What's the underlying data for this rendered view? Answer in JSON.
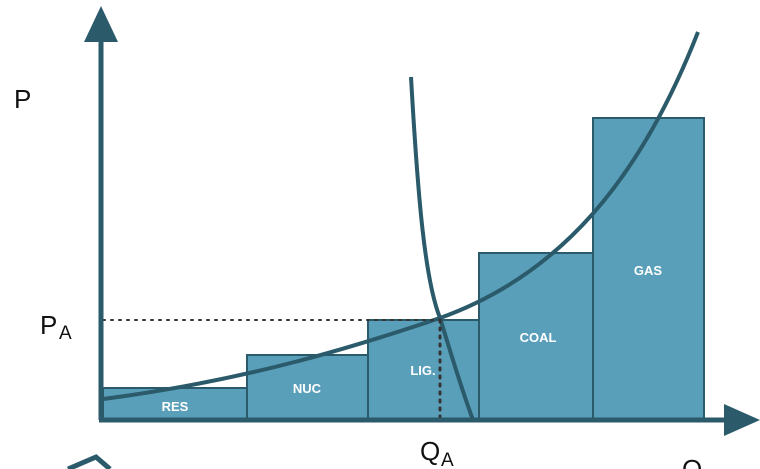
{
  "axes": {
    "y_label": "P",
    "x_label": "Q",
    "price_label": "P",
    "price_subscript": "A",
    "quantity_label": "Q",
    "quantity_subscript": "A"
  },
  "blocks": [
    {
      "label": "RES"
    },
    {
      "label": "NUC"
    },
    {
      "label": "LIG."
    },
    {
      "label": "COAL"
    },
    {
      "label": "GAS"
    }
  ],
  "colors": {
    "block_fill": "#5a9fba",
    "block_stroke": "#2b5a6b",
    "axis": "#2b5a6b",
    "curve": "#2b5a6b",
    "guide": "#333333"
  }
}
